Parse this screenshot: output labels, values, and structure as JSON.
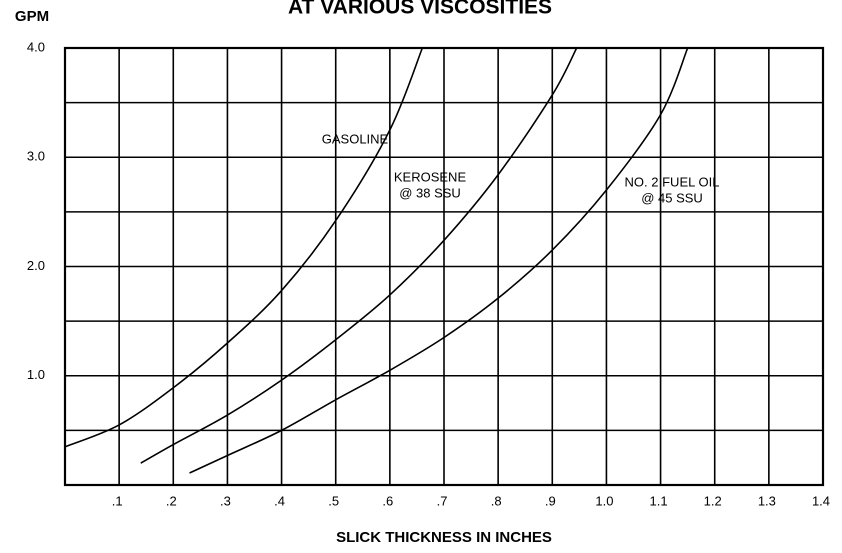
{
  "chart_data": {
    "type": "line",
    "title": "AT VARIOUS VISCOSITIES",
    "y_label": "GPM",
    "x_label": "SLICK THICKNESS IN INCHES",
    "xlim": [
      0,
      1.4
    ],
    "ylim": [
      0,
      4
    ],
    "xticks": [
      {
        "value": 0.1,
        "label": ".1"
      },
      {
        "value": 0.2,
        "label": ".2"
      },
      {
        "value": 0.3,
        "label": ".3"
      },
      {
        "value": 0.4,
        "label": ".4"
      },
      {
        "value": 0.5,
        "label": ".5"
      },
      {
        "value": 0.6,
        "label": ".6"
      },
      {
        "value": 0.7,
        "label": ".7"
      },
      {
        "value": 0.8,
        "label": ".8"
      },
      {
        "value": 0.9,
        "label": ".9"
      },
      {
        "value": 1,
        "label": "1.0"
      },
      1.1,
      1.2,
      1.3,
      1.4
    ],
    "yticks": [
      {
        "value": 1,
        "label": "1.0"
      },
      {
        "value": 2,
        "label": "2.0"
      },
      {
        "value": 3,
        "label": "3.0"
      },
      {
        "value": 4,
        "label": "4.0"
      }
    ],
    "yminor": [
      0.5,
      1.5,
      2.5,
      3.5
    ],
    "grid": true,
    "series": [
      {
        "labels": [
          "GASOLINE"
        ],
        "color": "#000000",
        "x": [
          0,
          0.1,
          0.2,
          0.3,
          0.4,
          0.5,
          0.6,
          0.66
        ],
        "values": [
          0.35,
          0.55,
          0.89,
          1.3,
          1.78,
          2.42,
          3.25,
          4.0
        ]
      },
      {
        "labels": [
          "KEROSENE",
          "@ 38 SSU"
        ],
        "color": "#000000",
        "x": [
          0.14,
          0.2,
          0.3,
          0.4,
          0.5,
          0.6,
          0.7,
          0.8,
          0.9,
          0.945
        ],
        "values": [
          0.2,
          0.37,
          0.64,
          0.96,
          1.33,
          1.74,
          2.24,
          2.84,
          3.57,
          4.0
        ]
      },
      {
        "labels": [
          "NO. 2 FUEL OIL",
          "@ 45 SSU"
        ],
        "color": "#000000",
        "x": [
          0.23,
          0.3,
          0.4,
          0.5,
          0.6,
          0.7,
          0.8,
          0.9,
          1.0,
          1.1,
          1.15
        ],
        "values": [
          0.11,
          0.27,
          0.5,
          0.78,
          1.05,
          1.35,
          1.71,
          2.15,
          2.7,
          3.39,
          4.0
        ]
      }
    ]
  }
}
